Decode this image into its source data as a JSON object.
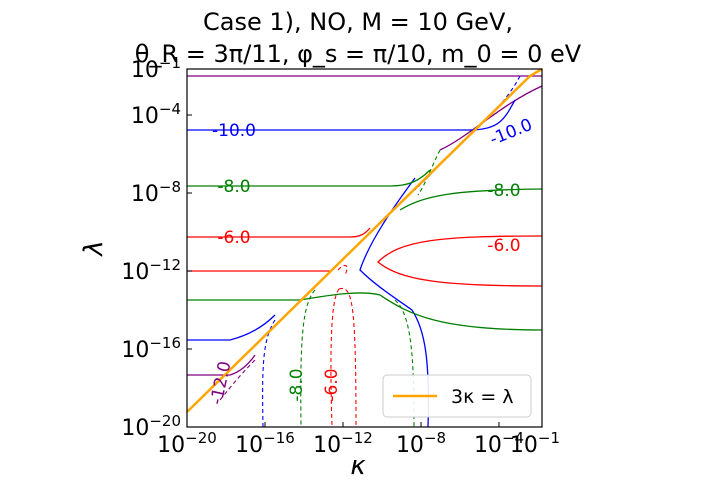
{
  "chart_data": {
    "type": "contour",
    "title_line1": "Case 1), NO, M = 10 GeV,",
    "title_line2": "θ_R = 3π/11, φ_s = π/10, m_0 = 0 eV",
    "xlabel": "κ",
    "ylabel": "λ",
    "xscale": "log",
    "yscale": "log",
    "xlim": [
      "1e-20",
      "1e-1"
    ],
    "ylim": [
      "1e-20",
      "1e-1"
    ],
    "xtick_labels": [
      {
        "base": "10",
        "exp": "−20"
      },
      {
        "base": "10",
        "exp": "−16"
      },
      {
        "base": "10",
        "exp": "−12"
      },
      {
        "base": "10",
        "exp": "−8"
      },
      {
        "base": "10",
        "exp": "−4"
      },
      {
        "base": "10",
        "exp": "−1"
      }
    ],
    "ytick_labels": [
      {
        "base": "10",
        "exp": "−20"
      },
      {
        "base": "10",
        "exp": "−16"
      },
      {
        "base": "10",
        "exp": "−12"
      },
      {
        "base": "10",
        "exp": "−8"
      },
      {
        "base": "10",
        "exp": "−4"
      },
      {
        "base": "10",
        "exp": "−1"
      }
    ],
    "legend": {
      "label": "3κ = λ",
      "color": "#ffa500",
      "placement": "lower-right"
    },
    "contour_levels": [
      {
        "level": -10.0,
        "color": "#0000ff"
      },
      {
        "level": -8.0,
        "color": "#008000"
      },
      {
        "level": -6.0,
        "color": "#ff0000"
      },
      {
        "level": -12.0,
        "color": "#800080"
      }
    ],
    "contour_labels": [
      {
        "text": "-10.0",
        "color": "#0000ff"
      },
      {
        "text": "-10.0",
        "color": "#0000ff"
      },
      {
        "text": "-8.0",
        "color": "#008000"
      },
      {
        "text": "-8.0",
        "color": "#008000"
      },
      {
        "text": "-6.0",
        "color": "#ff0000"
      },
      {
        "text": "-6.0",
        "color": "#ff0000"
      },
      {
        "text": "-12.0",
        "color": "#800080"
      },
      {
        "text": "-8.0",
        "color": "#008000"
      },
      {
        "text": "-6.0",
        "color": "#ff0000"
      }
    ],
    "reference_line": {
      "relation": "λ = 3κ",
      "color": "#ffa500"
    }
  }
}
